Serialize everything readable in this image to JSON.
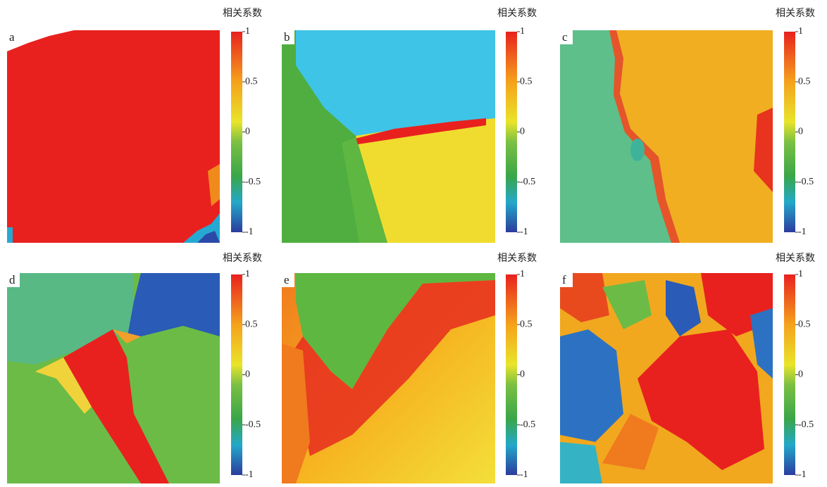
{
  "panels": [
    {
      "label": "a",
      "colorbar_title": "相关系数",
      "colorbar_ticks": [
        1,
        0.5,
        0,
        -0.5,
        -1
      ]
    },
    {
      "label": "b",
      "colorbar_title": "相关系数",
      "colorbar_ticks": [
        1,
        0.5,
        0,
        -0.5,
        -1
      ]
    },
    {
      "label": "c",
      "colorbar_title": "相关系数",
      "colorbar_ticks": [
        1,
        0.5,
        0,
        -0.5,
        -1
      ]
    },
    {
      "label": "d",
      "colorbar_title": "相关系数",
      "colorbar_ticks": [
        1,
        0.5,
        0,
        -0.5,
        -1
      ]
    },
    {
      "label": "e",
      "colorbar_title": "相关系数",
      "colorbar_ticks": [
        1,
        0.5,
        0,
        -0.5,
        -1
      ]
    },
    {
      "label": "f",
      "colorbar_title": "相关系数",
      "colorbar_ticks": [
        1,
        0.5,
        0,
        -0.5,
        -1
      ]
    }
  ]
}
